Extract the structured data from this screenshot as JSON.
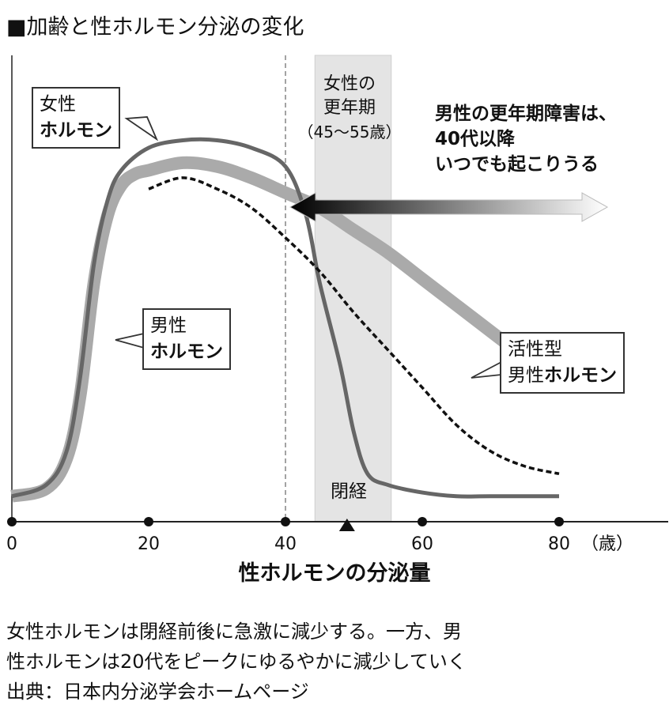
{
  "title": "■加齢と性ホルモン分泌の変化",
  "chart_data": {
    "type": "line",
    "xlabel": "性ホルモンの分泌量",
    "x_unit": "（歳）",
    "x_ticks": [
      0,
      20,
      40,
      60,
      80
    ],
    "xlim": [
      0,
      80
    ],
    "ylim": [
      0,
      10
    ],
    "series": [
      {
        "name": "女性ホルモン",
        "x": [
          0,
          5,
          8,
          10,
          12,
          14,
          16,
          20,
          25,
          30,
          35,
          40,
          43,
          45,
          48,
          50,
          52,
          55,
          60,
          65,
          70,
          80
        ],
        "y": [
          0.3,
          0.6,
          1.5,
          3.5,
          6.5,
          8.2,
          9.0,
          9.6,
          9.8,
          9.8,
          9.6,
          9.1,
          7.8,
          6.0,
          3.8,
          2.0,
          0.9,
          0.6,
          0.4,
          0.3,
          0.3,
          0.3
        ]
      },
      {
        "name": "男性ホルモン",
        "x": [
          0,
          5,
          8,
          10,
          12,
          14,
          16,
          18,
          20,
          25,
          30,
          35,
          40,
          45,
          50,
          55,
          60,
          65,
          70,
          75,
          80
        ],
        "y": [
          0.3,
          0.5,
          1.3,
          3.0,
          6.0,
          7.8,
          8.6,
          8.9,
          9.0,
          9.2,
          9.1,
          8.8,
          8.4,
          8.0,
          7.4,
          6.8,
          6.1,
          5.4,
          4.7,
          4.0,
          3.3
        ]
      },
      {
        "name": "活性型男性ホルモン",
        "x": [
          20,
          25,
          30,
          35,
          40,
          45,
          50,
          55,
          60,
          65,
          70,
          75,
          80
        ],
        "y": [
          8.5,
          8.8,
          8.5,
          8.0,
          7.2,
          6.3,
          5.2,
          4.2,
          3.2,
          2.2,
          1.5,
          1.1,
          0.9
        ]
      }
    ],
    "menopause_period": {
      "label": "女性の更年期",
      "sub": "（45〜55歳）",
      "from": 45,
      "to": 55,
      "marker_x": 49,
      "marker_label": "閉経"
    },
    "vertical_line_x": 40,
    "arrow_range": [
      40,
      88
    ]
  },
  "labels": {
    "female_line1": "女性",
    "female_line2": "ホルモン",
    "male_line1": "男性",
    "male_line2": "ホルモン",
    "active_line1": "活性型",
    "active_line2a": "男性",
    "active_line2b": "ホルモン",
    "period_line1": "女性の",
    "period_line2": "更年期",
    "period_line3": "（45〜55歳）",
    "menopause": "閉経",
    "note_line1": "男性の更年期障害は、",
    "note_line2": "40代以降",
    "note_line3": "いつでも起こりうる"
  },
  "footer": {
    "line1": "女性ホルモンは閉経前後に急激に減少する。一方、男",
    "line2": "性ホルモンは20代をピークにゆるやかに減少していく",
    "line3": "出典：日本内分泌学会ホームページ"
  },
  "colors": {
    "female": "#666666",
    "male": "#aaaaaa",
    "active": "#111111",
    "band": "#e4e4e4"
  }
}
